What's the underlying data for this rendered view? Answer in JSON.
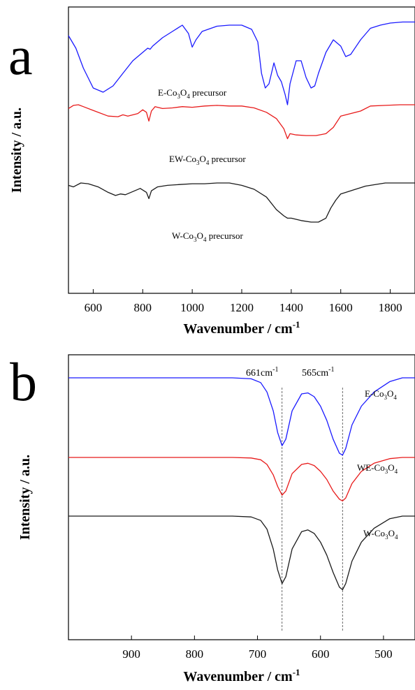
{
  "chart_data": [
    {
      "panel": "a",
      "type": "line",
      "xlabel": "Wavenumber / cm-1",
      "ylabel": "Intensity / a.u.",
      "xlim": [
        500,
        1900
      ],
      "x_ticks": [
        600,
        800,
        1000,
        1200,
        1400,
        1600,
        1800
      ],
      "y_ticks": [],
      "series": [
        {
          "name": "E-Co3O4 precursor",
          "color": "#1a1aff",
          "x": [
            500,
            530,
            560,
            600,
            640,
            680,
            720,
            760,
            800,
            820,
            830,
            840,
            880,
            920,
            960,
            985,
            1000,
            1015,
            1040,
            1100,
            1150,
            1200,
            1240,
            1265,
            1280,
            1295,
            1310,
            1330,
            1345,
            1360,
            1375,
            1385,
            1395,
            1420,
            1440,
            1460,
            1480,
            1495,
            1510,
            1540,
            1570,
            1600,
            1620,
            1640,
            1680,
            1720,
            1760,
            1800,
            1850,
            1900
          ],
          "y": [
            0.86,
            0.74,
            0.55,
            0.36,
            0.32,
            0.38,
            0.5,
            0.62,
            0.7,
            0.74,
            0.73,
            0.76,
            0.84,
            0.9,
            0.96,
            0.88,
            0.75,
            0.82,
            0.9,
            0.95,
            0.96,
            0.96,
            0.92,
            0.8,
            0.5,
            0.36,
            0.4,
            0.6,
            0.48,
            0.42,
            0.3,
            0.2,
            0.4,
            0.62,
            0.62,
            0.46,
            0.36,
            0.38,
            0.5,
            0.7,
            0.82,
            0.76,
            0.66,
            0.68,
            0.82,
            0.93,
            0.96,
            0.98,
            0.99,
            0.99
          ]
        },
        {
          "name": "EW-Co3O4 precursor",
          "color": "#e81a1a",
          "x": [
            500,
            520,
            540,
            560,
            600,
            660,
            700,
            720,
            740,
            780,
            800,
            815,
            825,
            835,
            850,
            880,
            920,
            960,
            1000,
            1050,
            1100,
            1150,
            1200,
            1250,
            1300,
            1340,
            1370,
            1385,
            1395,
            1420,
            1460,
            1500,
            1540,
            1570,
            1600,
            1640,
            1680,
            1720,
            1780,
            1840,
            1900
          ],
          "y": [
            0.94,
            0.99,
            1.0,
            0.97,
            0.91,
            0.82,
            0.81,
            0.84,
            0.82,
            0.86,
            0.92,
            0.88,
            0.74,
            0.9,
            0.97,
            0.94,
            0.95,
            0.97,
            0.96,
            0.98,
            0.99,
            0.98,
            0.98,
            0.95,
            0.88,
            0.78,
            0.62,
            0.46,
            0.54,
            0.52,
            0.51,
            0.51,
            0.54,
            0.64,
            0.82,
            0.86,
            0.9,
            0.98,
            0.99,
            1.0,
            1.0
          ]
        },
        {
          "name": "W-Co3O4 precursor",
          "color": "#1a1a1a",
          "x": [
            500,
            520,
            550,
            580,
            620,
            660,
            690,
            710,
            730,
            760,
            790,
            815,
            825,
            835,
            860,
            900,
            950,
            1000,
            1050,
            1100,
            1150,
            1200,
            1250,
            1300,
            1340,
            1370,
            1385,
            1400,
            1440,
            1480,
            1510,
            1540,
            1560,
            1580,
            1600,
            1640,
            1700,
            1780,
            1840,
            1900
          ],
          "y": [
            0.97,
            0.95,
            1.0,
            0.99,
            0.95,
            0.88,
            0.84,
            0.86,
            0.85,
            0.89,
            0.93,
            0.88,
            0.8,
            0.9,
            0.95,
            0.97,
            0.98,
            0.99,
            0.99,
            1.0,
            1.0,
            0.97,
            0.92,
            0.82,
            0.66,
            0.58,
            0.55,
            0.55,
            0.52,
            0.5,
            0.5,
            0.55,
            0.68,
            0.78,
            0.86,
            0.9,
            0.96,
            1.0,
            1.0,
            1.0
          ]
        }
      ],
      "curve_labels": {
        "e": {
          "prefix": "E-Co",
          "sub1": "3",
          "mid": "O",
          "sub2": "4",
          "suffix": " precursor"
        },
        "ew": {
          "prefix": "EW-Co",
          "sub1": "3",
          "mid": "O",
          "sub2": "4",
          "suffix": " precursor"
        },
        "w": {
          "prefix": "W-Co",
          "sub1": "3",
          "mid": "O",
          "sub2": "4",
          "suffix": " precursor"
        }
      }
    },
    {
      "panel": "b",
      "type": "line",
      "xlabel": "Wavenumber / cm-1",
      "ylabel": "Intensity / a.u.",
      "xlim": [
        1000,
        450
      ],
      "x_ticks": [
        900,
        800,
        700,
        600,
        500
      ],
      "y_ticks": [],
      "annotations": [
        {
          "x": 661,
          "text": "661cm",
          "sup": "-1"
        },
        {
          "x": 565,
          "text": "565cm",
          "sup": "-1"
        }
      ],
      "series": [
        {
          "name": "E-Co3O4",
          "color": "#1a1aff",
          "x": [
            1000,
            900,
            800,
            740,
            710,
            695,
            685,
            675,
            668,
            661,
            655,
            645,
            630,
            620,
            610,
            600,
            590,
            580,
            570,
            565,
            560,
            550,
            535,
            515,
            490,
            470,
            450
          ],
          "y": [
            1.0,
            1.0,
            1.0,
            1.0,
            0.99,
            0.95,
            0.85,
            0.65,
            0.42,
            0.28,
            0.35,
            0.65,
            0.83,
            0.84,
            0.8,
            0.7,
            0.55,
            0.35,
            0.2,
            0.18,
            0.25,
            0.5,
            0.7,
            0.85,
            0.96,
            1.0,
            1.0
          ]
        },
        {
          "name": "WE-Co3O4",
          "color": "#e81a1a",
          "x": [
            1000,
            900,
            800,
            740,
            710,
            695,
            685,
            675,
            668,
            661,
            655,
            645,
            630,
            620,
            610,
            600,
            590,
            580,
            570,
            565,
            560,
            550,
            535,
            515,
            490,
            470,
            450
          ],
          "y": [
            1.0,
            1.0,
            1.0,
            1.0,
            0.99,
            0.96,
            0.88,
            0.7,
            0.5,
            0.35,
            0.42,
            0.72,
            0.88,
            0.9,
            0.86,
            0.76,
            0.62,
            0.42,
            0.28,
            0.25,
            0.3,
            0.55,
            0.76,
            0.9,
            0.98,
            1.0,
            1.0
          ]
        },
        {
          "name": "W-Co3O4",
          "color": "#1a1a1a",
          "x": [
            1000,
            900,
            800,
            740,
            710,
            695,
            685,
            675,
            668,
            661,
            655,
            645,
            630,
            620,
            610,
            600,
            590,
            580,
            570,
            565,
            560,
            550,
            535,
            515,
            490,
            470,
            450
          ],
          "y": [
            1.0,
            1.0,
            1.0,
            1.0,
            0.99,
            0.95,
            0.85,
            0.62,
            0.38,
            0.22,
            0.3,
            0.62,
            0.82,
            0.84,
            0.8,
            0.7,
            0.55,
            0.35,
            0.18,
            0.15,
            0.22,
            0.48,
            0.7,
            0.86,
            0.97,
            1.0,
            1.0
          ]
        }
      ],
      "curve_labels": {
        "e": {
          "prefix": "E-Co",
          "sub1": "3",
          "mid": "O",
          "sub2": "4",
          "suffix": ""
        },
        "we": {
          "prefix": "WE-Co",
          "sub1": "3",
          "mid": "O",
          "sub2": "4",
          "suffix": ""
        },
        "w": {
          "prefix": "W-Co",
          "sub1": "3",
          "mid": "O",
          "sub2": "4",
          "suffix": ""
        }
      }
    }
  ],
  "figure": {
    "panel_a_letter": "a",
    "panel_b_letter": "b",
    "xlabel_text": "Wavenumber / cm",
    "xlabel_sup": "-1",
    "ylabel_text": "Intensity / a.u."
  }
}
